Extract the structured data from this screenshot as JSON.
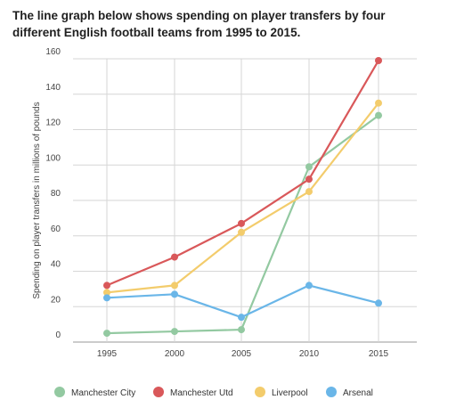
{
  "heading": {
    "line1": "The line graph below shows spending on player transfers by four",
    "line2": "different English football teams from 1995 to 2015."
  },
  "chart_data": {
    "type": "line",
    "title": "",
    "xlabel": "",
    "ylabel": "Spending on player transfers in millions of pounds",
    "categories": [
      "1995",
      "2000",
      "2005",
      "2010",
      "2015"
    ],
    "ylim": [
      0,
      160
    ],
    "yticks": [
      0,
      20,
      40,
      60,
      80,
      100,
      120,
      140,
      160
    ],
    "grid": true,
    "legend": "bottom",
    "series": [
      {
        "name": "Manchester City",
        "color": "#93c9a1",
        "values": [
          5,
          6,
          7,
          99,
          128
        ]
      },
      {
        "name": "Manchester Utd",
        "color": "#d9585a",
        "values": [
          32,
          48,
          67,
          92,
          159
        ]
      },
      {
        "name": "Liverpool",
        "color": "#f3cc6c",
        "values": [
          28,
          32,
          62,
          85,
          135
        ]
      },
      {
        "name": "Arsenal",
        "color": "#6ab6e8",
        "values": [
          25,
          27,
          14,
          32,
          22
        ]
      }
    ]
  }
}
